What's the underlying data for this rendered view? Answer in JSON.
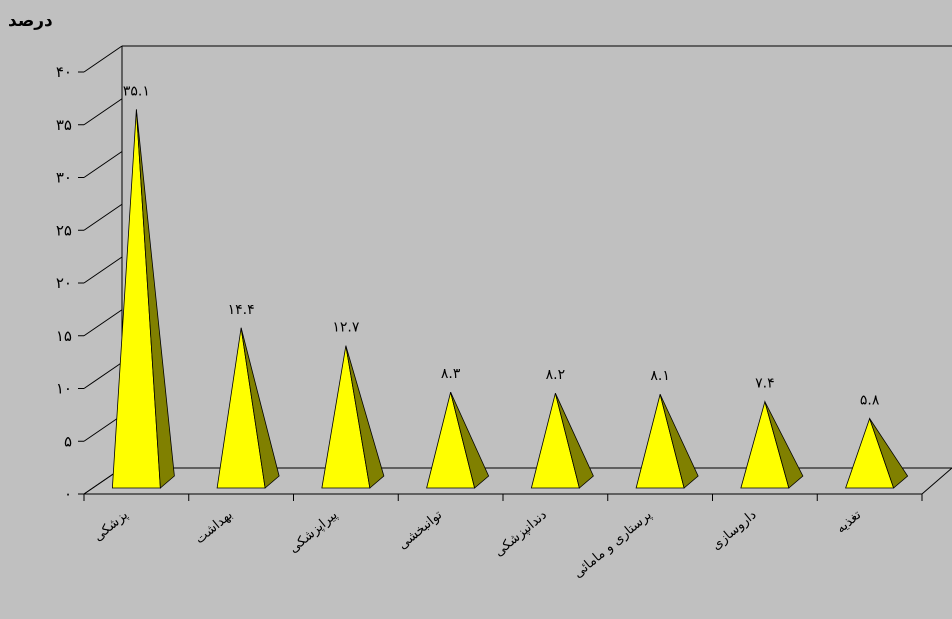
{
  "chart_data": {
    "type": "bar",
    "bar_shape": "pyramid-3d",
    "ylabel": "درصد",
    "xlabel": "",
    "title": "",
    "ylim": [
      0,
      40
    ],
    "yticks": [
      "۰",
      "۵",
      "۱۰",
      "۱۵",
      "۲۰",
      "۲۵",
      "۳۰",
      "۳۵",
      "۴۰"
    ],
    "categories": [
      "پزشکی",
      "بهداشت",
      "پیراپزشکی",
      "توانبخشی",
      "دندانپزشکی",
      "پرستاری و مامائی",
      "داروسازی",
      "تغذیه"
    ],
    "values": [
      35.1,
      14.4,
      12.7,
      8.3,
      8.2,
      8.1,
      7.4,
      5.8
    ],
    "data_labels": [
      "۳۵.۱",
      "۱۴.۴",
      "۱۲.۷",
      "۸.۳",
      "۸.۲",
      "۸.۱",
      "۷.۴",
      "۵.۸"
    ],
    "grid": false,
    "legend": "none",
    "colors": {
      "background": "#c0c0c0",
      "bar_front": "#ffff00",
      "bar_side": "#808000",
      "axis": "#000000"
    }
  }
}
